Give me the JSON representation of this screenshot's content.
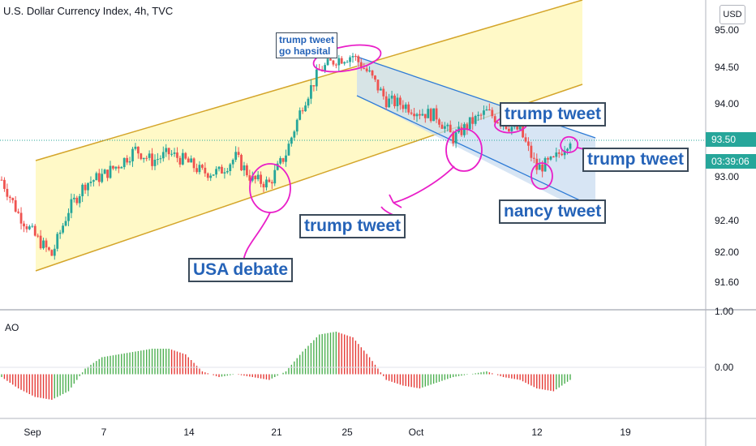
{
  "header": {
    "title": "U.S. Dollar Currency Index, 4h, TVC"
  },
  "currency_button": "USD",
  "indicator_label": "AO",
  "price_axis": {
    "labels": [
      "95.00",
      "94.50",
      "94.00",
      "93.00",
      "92.40",
      "92.00",
      "91.60"
    ],
    "current_price": "93.50",
    "countdown": "03:39:06"
  },
  "ao_axis": {
    "labels": [
      "1.00",
      "0.00"
    ]
  },
  "x_axis": {
    "labels": [
      "Sep",
      "7",
      "14",
      "21",
      "25",
      "Oct",
      "12",
      "19"
    ]
  },
  "annotations": {
    "trump_hospital": [
      "trump tweet",
      "go hapsital"
    ],
    "trump_tweet_1": "trump tweet",
    "trump_tweet_2": "trump tweet",
    "trump_tweet_3": "trump tweet",
    "nancy_tweet": "nancy tweet",
    "usa_debate": "USA debate"
  },
  "colors": {
    "up": "#26a69a",
    "down": "#ef5350",
    "channel_fill": "#fff9c4",
    "channel_line": "#d4a52a",
    "down_channel_fill": "#c9dcf0",
    "down_channel_line": "#2e7bd6",
    "marker": "#e91ec8",
    "ao_up": "#4caf50",
    "ao_down": "#e53935",
    "current_price_bg": "#26a69a",
    "countdown_bg": "#26a69a"
  },
  "chart_data": {
    "type": "candlestick",
    "title": "U.S. Dollar Currency Index, 4h, TVC",
    "price_ylim": [
      91.3,
      95.25
    ],
    "ao_ylim": [
      -0.75,
      1.05
    ],
    "x": [
      "Aug 28",
      "Aug 29",
      "Aug 31",
      "Sep 1",
      "Sep 2",
      "Sep 3",
      "Sep 4",
      "Sep 7",
      "Sep 8",
      "Sep 9",
      "Sep 10",
      "Sep 11",
      "Sep 14",
      "Sep 15",
      "Sep 16",
      "Sep 17",
      "Sep 18",
      "Sep 21",
      "Sep 22",
      "Sep 23",
      "Sep 24",
      "Sep 25",
      "Sep 28",
      "Sep 29",
      "Sep 30",
      "Oct 1",
      "Oct 2",
      "Oct 5",
      "Oct 6",
      "Oct 7",
      "Oct 8",
      "Oct 9",
      "Oct 12",
      "Oct 13",
      "Oct 14"
    ],
    "close": [
      92.95,
      92.5,
      92.2,
      91.95,
      92.55,
      92.9,
      93.0,
      93.15,
      93.35,
      93.2,
      93.3,
      93.2,
      93.05,
      93.05,
      93.25,
      92.95,
      92.9,
      93.3,
      93.95,
      94.4,
      94.55,
      94.6,
      94.35,
      94.0,
      93.95,
      93.85,
      93.8,
      93.5,
      93.7,
      93.85,
      93.7,
      93.6,
      93.1,
      93.2,
      93.5
    ],
    "series": [
      {
        "name": "AO",
        "values": [
          -0.05,
          -0.25,
          -0.4,
          -0.45,
          -0.3,
          0.1,
          0.3,
          0.35,
          0.4,
          0.45,
          0.45,
          0.35,
          0.05,
          -0.05,
          0.0,
          -0.05,
          -0.1,
          0.05,
          0.4,
          0.7,
          0.75,
          0.65,
          0.3,
          -0.1,
          -0.2,
          -0.25,
          -0.15,
          -0.05,
          0.0,
          0.05,
          -0.05,
          -0.1,
          -0.25,
          -0.3,
          -0.1
        ]
      }
    ],
    "annotations": [
      "trump tweet go hapsital",
      "trump tweet",
      "trump tweet",
      "trump tweet",
      "nancy tweet",
      "USA debate"
    ]
  }
}
